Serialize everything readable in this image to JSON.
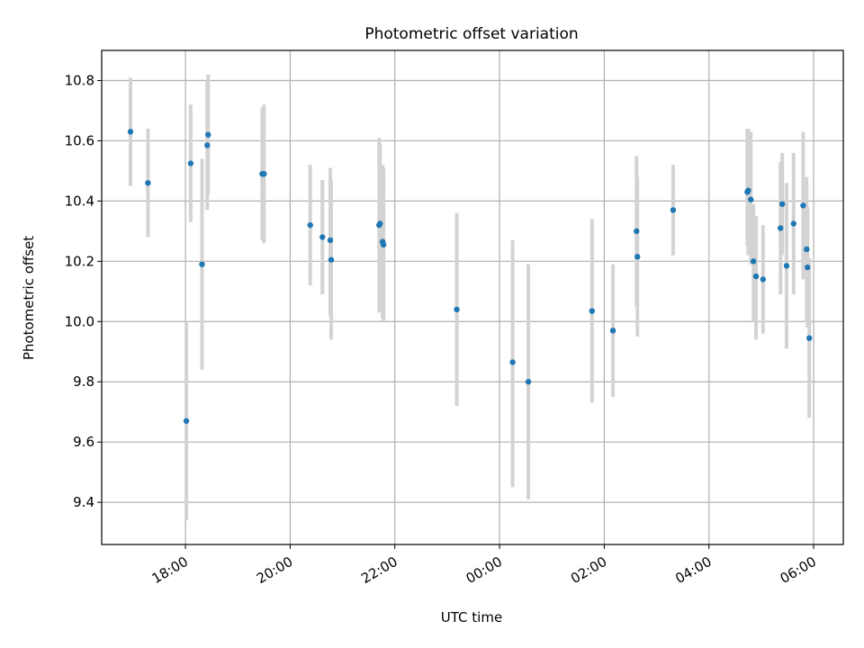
{
  "chart_data": {
    "type": "scatter",
    "title": "Photometric offset variation",
    "xlabel": "UTC time",
    "ylabel": "Photometric offset",
    "x_unit": "UTC time of night (hours, 24h clock)",
    "xlim": [
      "16:24",
      "06:34"
    ],
    "ylim": [
      9.26,
      10.9
    ],
    "x_ticks": [
      "18:00",
      "20:00",
      "22:00",
      "00:00",
      "02:00",
      "04:00",
      "06:00"
    ],
    "y_ticks": [
      9.4,
      9.6,
      9.8,
      10.0,
      10.2,
      10.4,
      10.6,
      10.8
    ],
    "grid": true,
    "colors": {
      "marker": "#1f77b4",
      "errorbar": "#d3d3d3",
      "grid": "#b0b0b0"
    },
    "points": [
      {
        "x": "16:57",
        "y": 10.63,
        "lo": 10.45,
        "hi": 10.81
      },
      {
        "x": "17:17",
        "y": 10.46,
        "lo": 10.28,
        "hi": 10.64
      },
      {
        "x": "18:01",
        "y": 9.67,
        "lo": 9.34,
        "hi": 10.0
      },
      {
        "x": "18:06",
        "y": 10.525,
        "lo": 10.33,
        "hi": 10.72
      },
      {
        "x": "18:19",
        "y": 10.19,
        "lo": 9.84,
        "hi": 10.54
      },
      {
        "x": "18:25",
        "y": 10.585,
        "lo": 10.37,
        "hi": 10.8
      },
      {
        "x": "18:26",
        "y": 10.62,
        "lo": 10.42,
        "hi": 10.82
      },
      {
        "x": "19:28",
        "y": 10.49,
        "lo": 10.27,
        "hi": 10.71
      },
      {
        "x": "19:30",
        "y": 10.49,
        "lo": 10.26,
        "hi": 10.72
      },
      {
        "x": "20:23",
        "y": 10.32,
        "lo": 10.12,
        "hi": 10.52
      },
      {
        "x": "20:37",
        "y": 10.28,
        "lo": 10.09,
        "hi": 10.47
      },
      {
        "x": "20:46",
        "y": 10.27,
        "lo": 10.02,
        "hi": 10.51
      },
      {
        "x": "20:47",
        "y": 10.205,
        "lo": 9.94,
        "hi": 10.47
      },
      {
        "x": "21:42",
        "y": 10.32,
        "lo": 10.03,
        "hi": 10.61
      },
      {
        "x": "21:43",
        "y": 10.325,
        "lo": 10.06,
        "hi": 10.59
      },
      {
        "x": "21:46",
        "y": 10.265,
        "lo": 10.01,
        "hi": 10.52
      },
      {
        "x": "21:47",
        "y": 10.255,
        "lo": 10.0,
        "hi": 10.51
      },
      {
        "x": "23:11",
        "y": 10.04,
        "lo": 9.72,
        "hi": 10.36
      },
      {
        "x": "00:15",
        "y": 9.865,
        "lo": 9.45,
        "hi": 10.27
      },
      {
        "x": "00:33",
        "y": 9.8,
        "lo": 9.41,
        "hi": 10.19
      },
      {
        "x": "01:46",
        "y": 10.035,
        "lo": 9.73,
        "hi": 10.34
      },
      {
        "x": "02:10",
        "y": 9.97,
        "lo": 9.75,
        "hi": 10.19
      },
      {
        "x": "02:37",
        "y": 10.3,
        "lo": 10.05,
        "hi": 10.55
      },
      {
        "x": "02:38",
        "y": 10.215,
        "lo": 9.95,
        "hi": 10.48
      },
      {
        "x": "03:19",
        "y": 10.37,
        "lo": 10.22,
        "hi": 10.52
      },
      {
        "x": "04:44",
        "y": 10.43,
        "lo": 10.25,
        "hi": 10.64
      },
      {
        "x": "04:45",
        "y": 10.435,
        "lo": 10.22,
        "hi": 10.64
      },
      {
        "x": "04:48",
        "y": 10.405,
        "lo": 10.19,
        "hi": 10.63
      },
      {
        "x": "04:51",
        "y": 10.2,
        "lo": 10.0,
        "hi": 10.39
      },
      {
        "x": "04:54",
        "y": 10.15,
        "lo": 9.94,
        "hi": 10.35
      },
      {
        "x": "05:02",
        "y": 10.14,
        "lo": 9.96,
        "hi": 10.32
      },
      {
        "x": "05:22",
        "y": 10.31,
        "lo": 10.09,
        "hi": 10.53
      },
      {
        "x": "05:24",
        "y": 10.39,
        "lo": 10.22,
        "hi": 10.56
      },
      {
        "x": "05:29",
        "y": 10.185,
        "lo": 9.91,
        "hi": 10.46
      },
      {
        "x": "05:37",
        "y": 10.325,
        "lo": 10.09,
        "hi": 10.56
      },
      {
        "x": "05:48",
        "y": 10.385,
        "lo": 10.14,
        "hi": 10.63
      },
      {
        "x": "05:52",
        "y": 10.24,
        "lo": 10.0,
        "hi": 10.48
      },
      {
        "x": "05:53",
        "y": 10.18,
        "lo": 9.98,
        "hi": 10.38
      },
      {
        "x": "05:55",
        "y": 9.945,
        "lo": 9.68,
        "hi": 10.21
      }
    ]
  }
}
